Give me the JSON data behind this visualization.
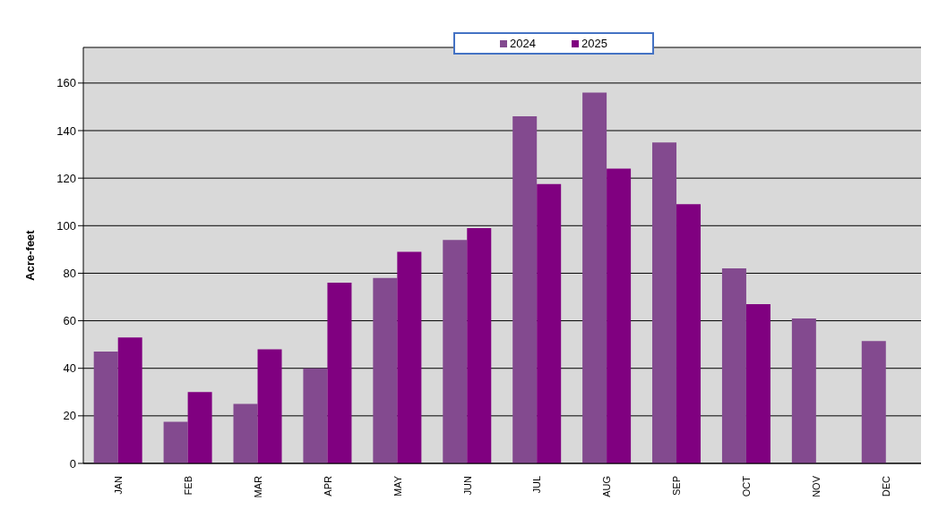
{
  "chart_data": {
    "type": "bar",
    "ylabel": "Acre-feet",
    "categories": [
      "JAN",
      "FEB",
      "MAR",
      "APR",
      "MAY",
      "JUN",
      "JUL",
      "AUG",
      "SEP",
      "OCT",
      "NOV",
      "DEC"
    ],
    "series": [
      {
        "name": "2024",
        "color": "#834a8f",
        "values": [
          47,
          17.5,
          25,
          40,
          78,
          94,
          146,
          156,
          135,
          82,
          61,
          51.5
        ]
      },
      {
        "name": "2025",
        "color": "#800080",
        "values": [
          53,
          30,
          48,
          76,
          89,
          99,
          117.5,
          124,
          109,
          67,
          null,
          null
        ]
      }
    ],
    "ylim": [
      0,
      175
    ],
    "yticks": [
      0,
      20,
      40,
      60,
      80,
      100,
      120,
      140,
      160
    ],
    "grid": "y",
    "legend": "top"
  }
}
